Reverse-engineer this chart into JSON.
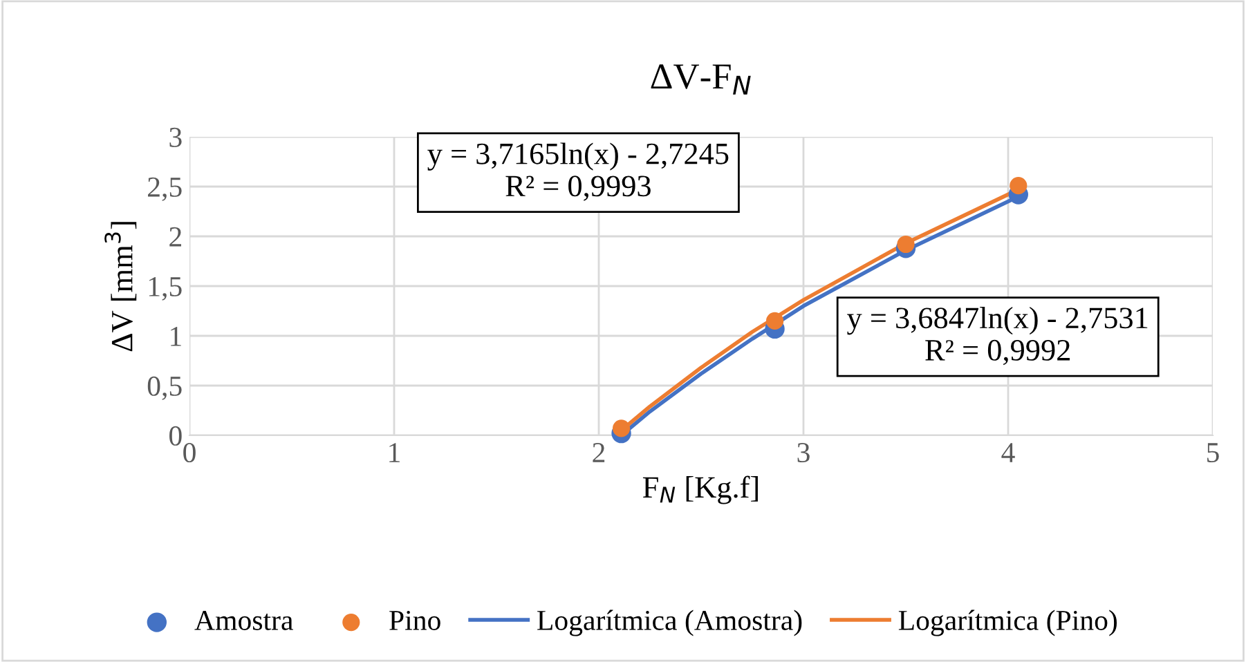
{
  "chart_data": {
    "type": "scatter",
    "title": "ΔV-F$_{N}$",
    "xlabel": "F$_{N}$ [Kg.f]",
    "ylabel": "ΔV [mm$^{3}$]",
    "series": [
      {
        "name": "Amostra",
        "color": "#4472c4",
        "x": [
          2.11,
          2.86,
          3.5,
          4.05
        ],
        "values": [
          0.02,
          1.07,
          1.88,
          2.42
        ]
      },
      {
        "name": "Pino",
        "color": "#ed7d31",
        "x": [
          2.11,
          2.86,
          3.5,
          4.05
        ],
        "values": [
          0.07,
          1.15,
          1.92,
          2.51
        ]
      },
      {
        "name": "Logarítmica (Amostra)",
        "type": "line",
        "color": "#4472c4",
        "x": [
          2.11,
          2.25,
          2.5,
          2.75,
          3.0,
          3.5,
          4.05
        ],
        "values": [
          0.0,
          0.24,
          0.62,
          0.97,
          1.3,
          1.86,
          2.4
        ]
      },
      {
        "name": "Logarítmica (Pino)",
        "type": "line",
        "color": "#ed7d31",
        "x": [
          2.11,
          2.25,
          2.5,
          2.75,
          3.0,
          3.5,
          4.05
        ],
        "values": [
          0.05,
          0.29,
          0.68,
          1.04,
          1.36,
          1.93,
          2.47
        ]
      }
    ],
    "xlim": [
      0,
      5
    ],
    "xticks": [
      0,
      1,
      2,
      3,
      4,
      5
    ],
    "ylim": [
      0,
      3
    ],
    "yticks": [
      0,
      {
        "value": 0.5,
        "label": "0,5"
      },
      1,
      {
        "value": 1.5,
        "label": "1,5"
      },
      2,
      {
        "value": 2.5,
        "label": "2,5"
      },
      3
    ],
    "grid": true,
    "legend": "bottom",
    "annotations": [
      "y = 3,7165ln(x) - 2,7245\nR² = 0,9993",
      "y = 3,6847ln(x) - 2,7531\nR² = 0,9992"
    ]
  }
}
